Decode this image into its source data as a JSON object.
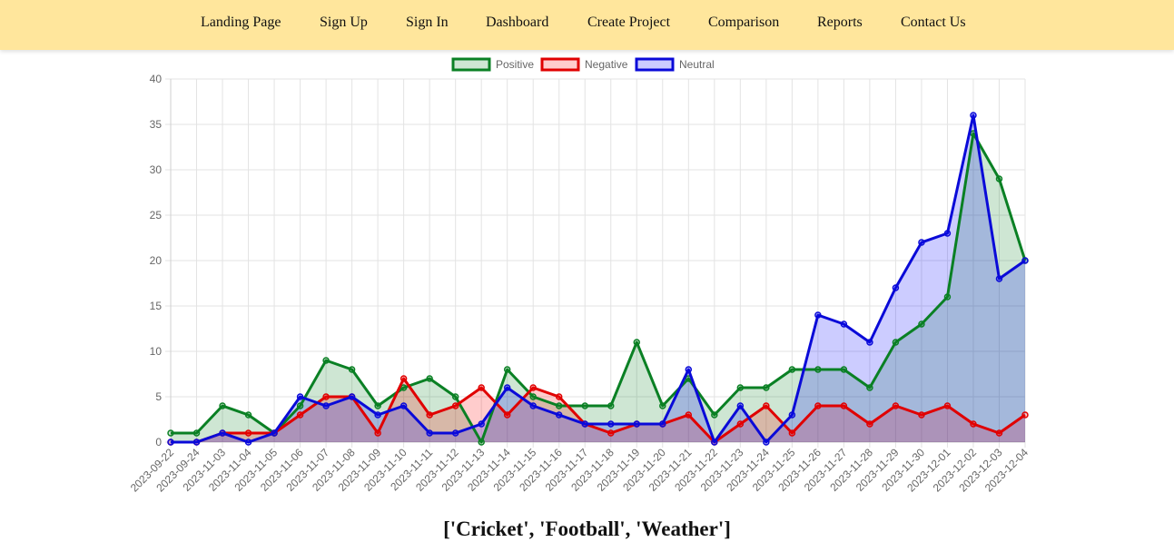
{
  "nav": {
    "items": [
      "Landing Page",
      "Sign Up",
      "Sign In",
      "Dashboard",
      "Create Project",
      "Comparison",
      "Reports",
      "Contact Us"
    ]
  },
  "footer": {
    "title": "['Cricket', 'Football', 'Weather']"
  },
  "chart_data": {
    "type": "line",
    "area": true,
    "legend_position": "top-center",
    "grid": true,
    "ylim": [
      0,
      40
    ],
    "yticks": [
      0,
      5,
      10,
      15,
      20,
      25,
      30,
      35,
      40
    ],
    "categories": [
      "2023-09-22",
      "2023-09-24",
      "2023-11-03",
      "2023-11-04",
      "2023-11-05",
      "2023-11-06",
      "2023-11-07",
      "2023-11-08",
      "2023-11-09",
      "2023-11-10",
      "2023-11-11",
      "2023-11-12",
      "2023-11-13",
      "2023-11-14",
      "2023-11-15",
      "2023-11-16",
      "2023-11-17",
      "2023-11-18",
      "2023-11-19",
      "2023-11-20",
      "2023-11-21",
      "2023-11-22",
      "2023-11-23",
      "2023-11-24",
      "2023-11-25",
      "2023-11-26",
      "2023-11-27",
      "2023-11-28",
      "2023-11-29",
      "2023-11-30",
      "2023-12-01",
      "2023-12-02",
      "2023-12-03",
      "2023-12-04"
    ],
    "series": [
      {
        "name": "Positive",
        "color": "#0a8024",
        "fill": "rgba(10,128,36,0.2)",
        "values": [
          1,
          1,
          4,
          3,
          1,
          4,
          9,
          8,
          4,
          6,
          7,
          5,
          0,
          8,
          5,
          4,
          4,
          4,
          11,
          4,
          7,
          3,
          6,
          6,
          8,
          8,
          8,
          6,
          11,
          13,
          16,
          34,
          29,
          20
        ]
      },
      {
        "name": "Negative",
        "color": "#e00000",
        "fill": "rgba(255,0,0,0.2)",
        "values": [
          0,
          0,
          1,
          1,
          1,
          3,
          5,
          5,
          1,
          7,
          3,
          4,
          6,
          3,
          6,
          5,
          2,
          1,
          2,
          2,
          3,
          0,
          2,
          4,
          1,
          4,
          4,
          2,
          4,
          3,
          4,
          2,
          1,
          3
        ]
      },
      {
        "name": "Neutral",
        "color": "#0a0ad8",
        "fill": "rgba(0,0,255,0.2)",
        "values": [
          0,
          0,
          1,
          0,
          1,
          5,
          4,
          5,
          3,
          4,
          1,
          1,
          2,
          6,
          4,
          3,
          2,
          2,
          2,
          2,
          8,
          0,
          4,
          0,
          3,
          14,
          13,
          11,
          17,
          22,
          23,
          36,
          18,
          20
        ]
      }
    ]
  }
}
